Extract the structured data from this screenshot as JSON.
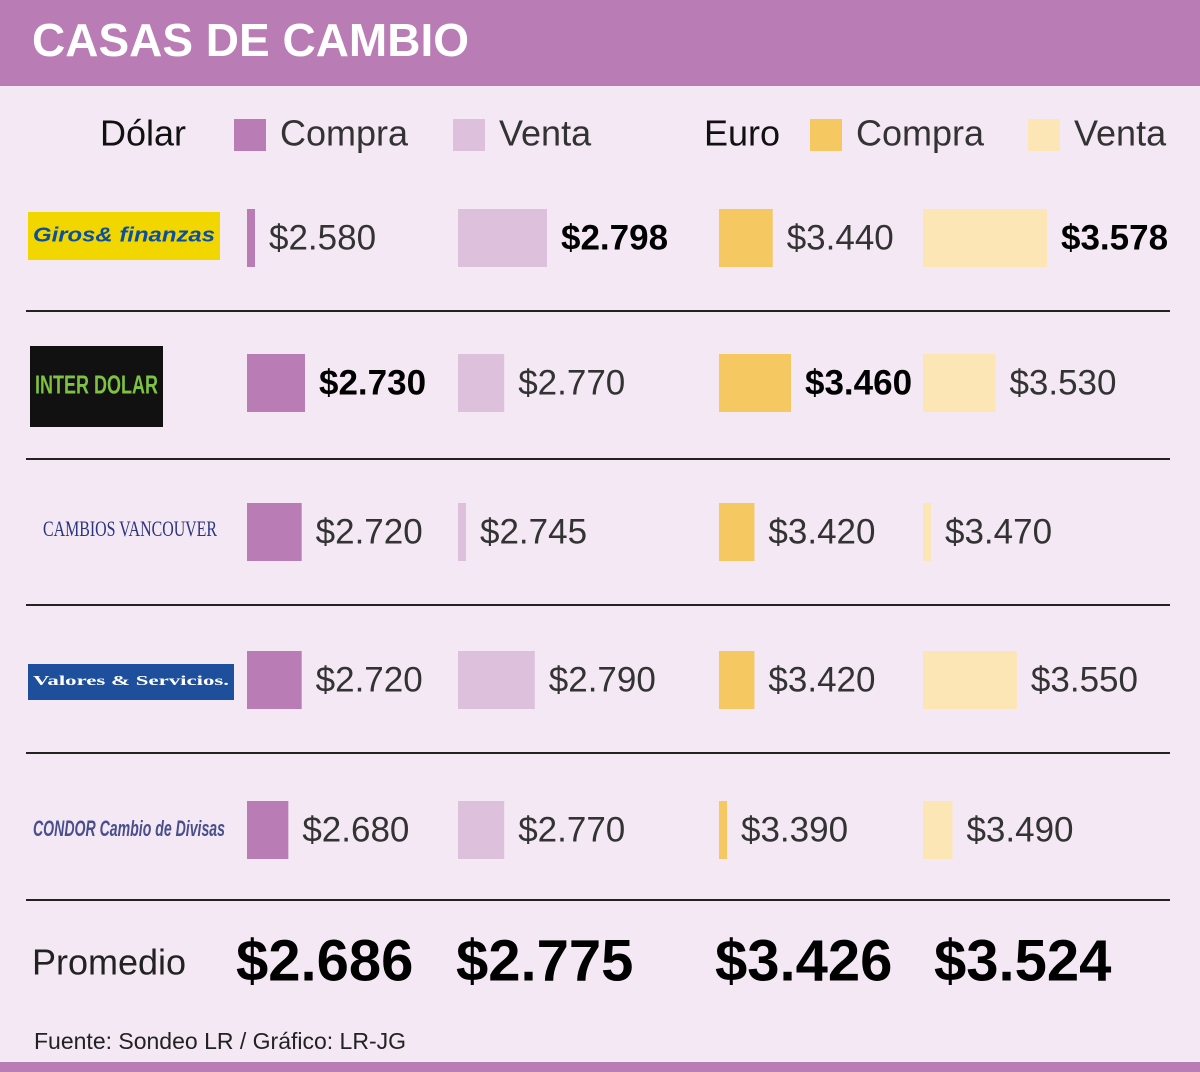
{
  "chart_data": {
    "type": "bar",
    "title": "CASAS DE CAMBIO",
    "categories": [
      "Giros& finanzas",
      "INTER DOLAR",
      "CAMBIOS VANCOUVER",
      "Valores & Servicios.",
      "CONDOR Cambio de Divisas"
    ],
    "groups": [
      {
        "name": "Dólar",
        "series": [
          {
            "name": "Compra",
            "color": "#b97cb5",
            "values": [
              2580,
              2730,
              2720,
              2720,
              2680
            ],
            "value_labels": [
              "$2.580",
              "$2.730",
              "$2.720",
              "$2.720",
              "$2.680"
            ],
            "average": 2686,
            "average_label": "$2.686"
          },
          {
            "name": "Venta",
            "color": "#dcc0dc",
            "values": [
              2798,
              2770,
              2745,
              2790,
              2770
            ],
            "value_labels": [
              "$2.798",
              "$2.770",
              "$2.745",
              "$2.790",
              "$2.770"
            ],
            "average": 2775,
            "average_label": "$2.775"
          }
        ]
      },
      {
        "name": "Euro",
        "series": [
          {
            "name": "Compra",
            "color": "#f5c862",
            "values": [
              3440,
              3460,
              3420,
              3420,
              3390
            ],
            "value_labels": [
              "$3.440",
              "$3.460",
              "$3.420",
              "$3.420",
              "$3.390"
            ],
            "average": 3426,
            "average_label": "$3.426"
          },
          {
            "name": "Venta",
            "color": "#fde6b5",
            "values": [
              3578,
              3530,
              3470,
              3550,
              3490
            ],
            "value_labels": [
              "$3.578",
              "$3.530",
              "$3.470",
              "$3.550",
              "$3.490"
            ],
            "average": 3524,
            "average_label": "$3.524"
          }
        ]
      }
    ],
    "average_name": "Promedio",
    "source": "Fuente: Sondeo LR / Gráfico: LR-JG"
  }
}
